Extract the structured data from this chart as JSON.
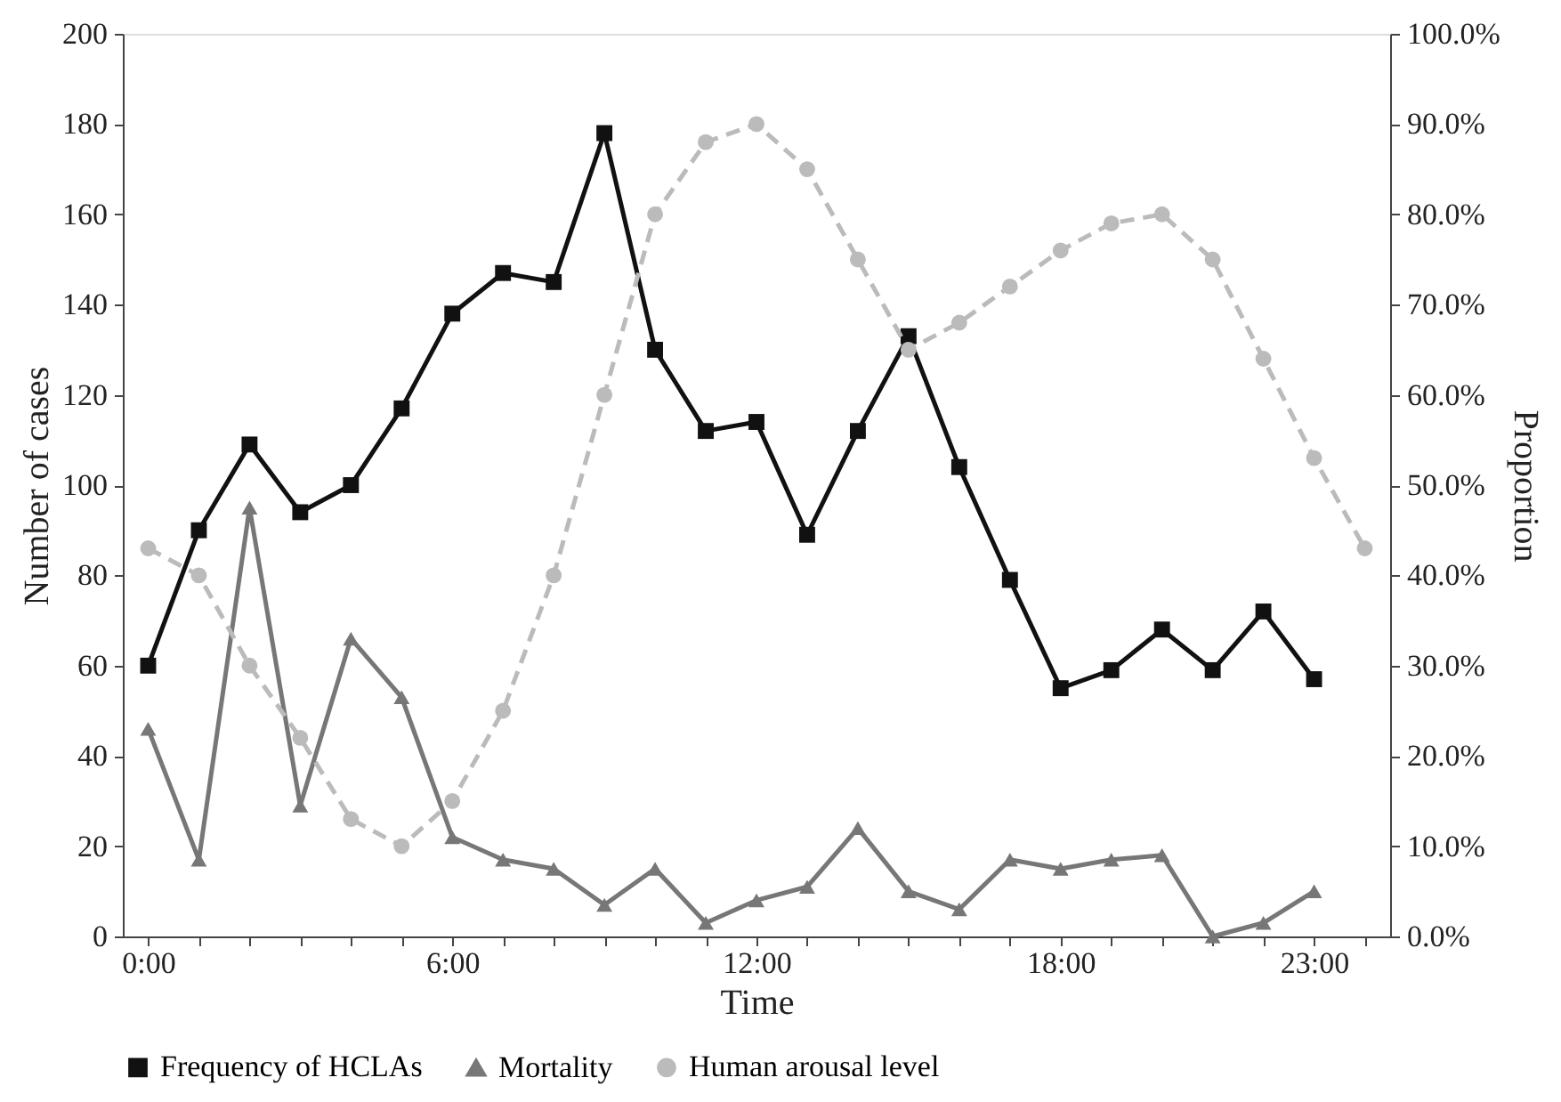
{
  "chart_data": {
    "type": "line",
    "xlabel": "Time",
    "ylabel": "Number of cases",
    "y2label": "Proportion",
    "categories": [
      "0:00",
      null,
      null,
      null,
      null,
      null,
      "6:00",
      null,
      null,
      null,
      null,
      null,
      "12:00",
      null,
      null,
      null,
      null,
      null,
      "18:00",
      null,
      null,
      null,
      null,
      "23:00",
      null
    ],
    "ylim": [
      0,
      200
    ],
    "yticks": [
      0,
      20,
      40,
      60,
      80,
      100,
      120,
      140,
      160,
      180,
      200
    ],
    "y2lim": [
      0,
      100
    ],
    "y2ticks": [
      {
        "value": 0,
        "label": "0.0%"
      },
      {
        "value": 10,
        "label": "10.0%"
      },
      {
        "value": 20,
        "label": "20.0%"
      },
      {
        "value": 30,
        "label": "30.0%"
      },
      {
        "value": 40,
        "label": "40.0%"
      },
      {
        "value": 50,
        "label": "50.0%"
      },
      {
        "value": 60,
        "label": "60.0%"
      },
      {
        "value": 70,
        "label": "70.0%"
      },
      {
        "value": 80,
        "label": "80.0%"
      },
      {
        "value": 90,
        "label": "90.0%"
      },
      {
        "value": 100,
        "label": "100.0%"
      }
    ],
    "grid": false,
    "legend": "bottom",
    "series": [
      {
        "name": "Frequency of HCLAs",
        "color": "#111111",
        "marker": "square",
        "line_style": "solid",
        "values": [
          60,
          90,
          109,
          94,
          100,
          117,
          138,
          147,
          145,
          178,
          130,
          112,
          114,
          89,
          112,
          133,
          104,
          79,
          55,
          59,
          68,
          59,
          72,
          57,
          null
        ]
      },
      {
        "name": "Mortality",
        "color": "#777777",
        "marker": "triangle",
        "line_style": "solid",
        "values": [
          46,
          17,
          95,
          29,
          66,
          53,
          22,
          17,
          15,
          7,
          15,
          3,
          8,
          11,
          24,
          10,
          6,
          17,
          15,
          17,
          18,
          0,
          3,
          10,
          null
        ]
      },
      {
        "name": "Human arousal level",
        "color": "#bbbbbb",
        "marker": "circle",
        "line_style": "dashed",
        "axis": "y2",
        "values": [
          43,
          40,
          30,
          22,
          13,
          10,
          15,
          25,
          40,
          60,
          80,
          88,
          90,
          85,
          75,
          65,
          68,
          72,
          76,
          79,
          80,
          75,
          64,
          53,
          43
        ]
      }
    ]
  }
}
